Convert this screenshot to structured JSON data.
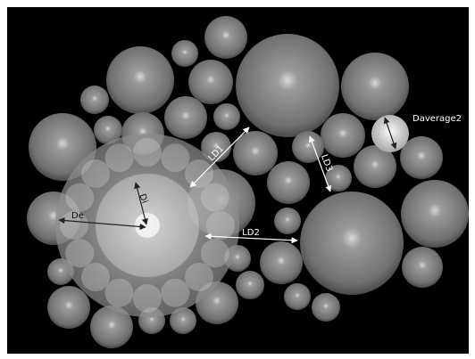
{
  "annotations": [
    {
      "label": "LD1"
    },
    {
      "label": "LD2"
    },
    {
      "label": "LD3"
    },
    {
      "label": "Daverage2"
    },
    {
      "label": "De"
    },
    {
      "label": "Di"
    }
  ]
}
